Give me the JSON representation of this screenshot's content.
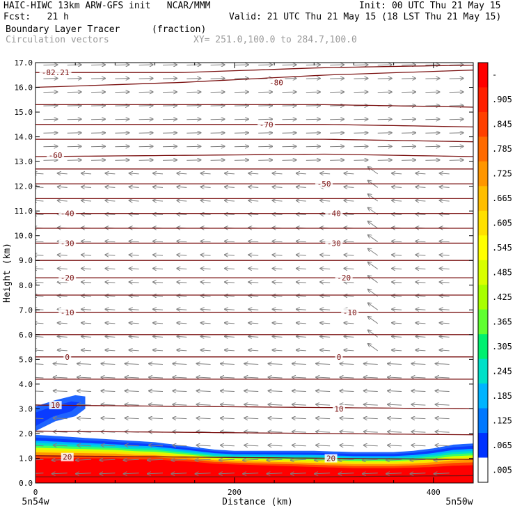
{
  "header": {
    "line1_left": "HAIC-HIWC 13km ARW-GFS init   NCAR/MMM",
    "line1_right": "Init: 00 UTC Thu 21 May 15",
    "line2_left": "Fcst:   21 h",
    "line2_right": "Valid: 21 UTC Thu 21 May 15 (18 LST Thu 21 May 15)",
    "line3_left": "Boundary Layer Tracer",
    "line3_mid": "(fraction)",
    "line4_left": "Circulation vectors",
    "line4_mid": "XY= 251.0,100.0 to 284.7,100.0"
  },
  "chart_data": {
    "type": "heatmap",
    "title": "Boundary Layer Tracer (fraction)",
    "xlabel": "Distance (km)",
    "ylabel": "Height (km)",
    "xlim": [
      0,
      440
    ],
    "ylim": [
      0,
      17
    ],
    "x_ticks": [
      0,
      200,
      400
    ],
    "y_ticks": [
      0.0,
      1.0,
      2.0,
      3.0,
      4.0,
      5.0,
      6.0,
      7.0,
      8.0,
      9.0,
      10.0,
      11.0,
      12.0,
      13.0,
      14.0,
      15.0,
      16.0,
      17.0
    ],
    "x_endpoint_labels": [
      "5n54w",
      "5n50w"
    ],
    "colorbar": {
      "labels": [
        "-",
        ".905",
        ".845",
        ".785",
        ".725",
        ".665",
        ".605",
        ".545",
        ".485",
        ".425",
        ".365",
        ".305",
        ".245",
        ".185",
        ".125",
        ".065",
        ".005"
      ],
      "colors": [
        "#ff0000",
        "#ff2000",
        "#ff4000",
        "#ff6a00",
        "#ff9600",
        "#ffbe00",
        "#ffe000",
        "#ffff00",
        "#d8ff00",
        "#a8ff00",
        "#60ff30",
        "#00f070",
        "#00e0c8",
        "#00b4ff",
        "#0078ff",
        "#0032ff",
        "#ffffff"
      ]
    },
    "tracer_profile": {
      "x": [
        0,
        20,
        40,
        60,
        80,
        100,
        120,
        140,
        160,
        180,
        200,
        240,
        280,
        320,
        360,
        380,
        400,
        420,
        440
      ],
      "top": [
        1.95,
        1.9,
        1.85,
        1.8,
        1.75,
        1.7,
        1.65,
        1.55,
        1.45,
        1.35,
        1.3,
        1.3,
        1.3,
        1.25,
        1.25,
        1.3,
        1.4,
        1.55,
        1.6
      ],
      "red_top": [
        1.0,
        1.0,
        1.0,
        1.0,
        1.0,
        0.95,
        0.95,
        0.9,
        0.85,
        0.78,
        0.75,
        0.7,
        0.65,
        0.6,
        0.6,
        0.62,
        0.65,
        0.7,
        0.72
      ]
    },
    "elevated_layer": {
      "x": [
        0,
        20,
        40,
        50
      ],
      "bottom": [
        2.1,
        2.5,
        2.7,
        3.0
      ],
      "top": [
        3.1,
        3.35,
        3.55,
        3.5
      ]
    },
    "temperature_contours": [
      {
        "level": "-82.21",
        "z": [
          16.6,
          16.6,
          16.8,
          16.9
        ]
      },
      {
        "level": "-80",
        "z": [
          16.0,
          16.2,
          16.5,
          16.7
        ]
      },
      {
        "level": "",
        "z": [
          15.3,
          15.3,
          15.3,
          15.2
        ]
      },
      {
        "level": "-70",
        "z": [
          14.5,
          14.5,
          14.5,
          14.4
        ]
      },
      {
        "level": "",
        "z": [
          13.9,
          13.9,
          13.9,
          13.8
        ]
      },
      {
        "level": "-60",
        "z": [
          13.2,
          13.25,
          13.3,
          13.2
        ]
      },
      {
        "level": "",
        "z": [
          12.7,
          12.7,
          12.7,
          12.7
        ]
      },
      {
        "level": "-50",
        "z": [
          12.1,
          12.1,
          12.1,
          12.1
        ]
      },
      {
        "level": "",
        "z": [
          11.5,
          11.5,
          11.5,
          11.5
        ]
      },
      {
        "level": "-40",
        "z": [
          10.9,
          10.9,
          10.9,
          10.9
        ]
      },
      {
        "level": "",
        "z": [
          10.3,
          10.3,
          10.3,
          10.3
        ]
      },
      {
        "level": "-30",
        "z": [
          9.7,
          9.7,
          9.7,
          9.7
        ]
      },
      {
        "level": "",
        "z": [
          9.0,
          9.0,
          9.0,
          9.0
        ]
      },
      {
        "level": "-20",
        "z": [
          8.3,
          8.3,
          8.3,
          8.3
        ]
      },
      {
        "level": "",
        "z": [
          7.6,
          7.6,
          7.6,
          7.6
        ]
      },
      {
        "level": "-10",
        "z": [
          6.9,
          6.9,
          6.9,
          6.9
        ]
      },
      {
        "level": "",
        "z": [
          6.0,
          6.0,
          6.0,
          6.0
        ]
      },
      {
        "level": "0",
        "z": [
          5.1,
          5.1,
          5.1,
          5.1
        ]
      },
      {
        "level": "",
        "z": [
          4.2,
          4.2,
          4.2,
          4.2
        ]
      },
      {
        "level": "10",
        "z": [
          3.15,
          3.1,
          3.05,
          3.0
        ]
      },
      {
        "level": "",
        "z": [
          2.1,
          2.05,
          2.0,
          1.95
        ]
      },
      {
        "level": "20",
        "z": [
          1.1,
          1.05,
          1.0,
          0.95
        ]
      },
      {
        "level": "",
        "z": [
          0.25,
          0.25,
          0.25,
          0.3
        ]
      }
    ],
    "contour_label_positions_km": [
      {
        "text": "-82.21",
        "x": 20,
        "z": 16.6
      },
      {
        "text": "-80",
        "x": 242,
        "z": 16.2
      },
      {
        "text": "-70",
        "x": 232,
        "z": 14.5
      },
      {
        "text": "-60",
        "x": 20,
        "z": 13.25
      },
      {
        "text": "-50",
        "x": 290,
        "z": 12.1
      },
      {
        "text": "-40",
        "x": 32,
        "z": 10.9
      },
      {
        "text": "-40",
        "x": 300,
        "z": 10.9
      },
      {
        "text": "-30",
        "x": 32,
        "z": 9.7
      },
      {
        "text": "-30",
        "x": 300,
        "z": 9.7
      },
      {
        "text": "-20",
        "x": 32,
        "z": 8.3
      },
      {
        "text": "-20",
        "x": 310,
        "z": 8.3
      },
      {
        "text": "-10",
        "x": 32,
        "z": 6.9
      },
      {
        "text": "-10",
        "x": 316,
        "z": 6.9
      },
      {
        "text": "0",
        "x": 32,
        "z": 5.1
      },
      {
        "text": "0",
        "x": 305,
        "z": 5.1
      },
      {
        "text": "10",
        "x": 20,
        "z": 3.15
      },
      {
        "text": "10",
        "x": 305,
        "z": 3.0
      },
      {
        "text": "20",
        "x": 32,
        "z": 1.05
      },
      {
        "text": "20",
        "x": 297,
        "z": 1.0
      }
    ]
  }
}
